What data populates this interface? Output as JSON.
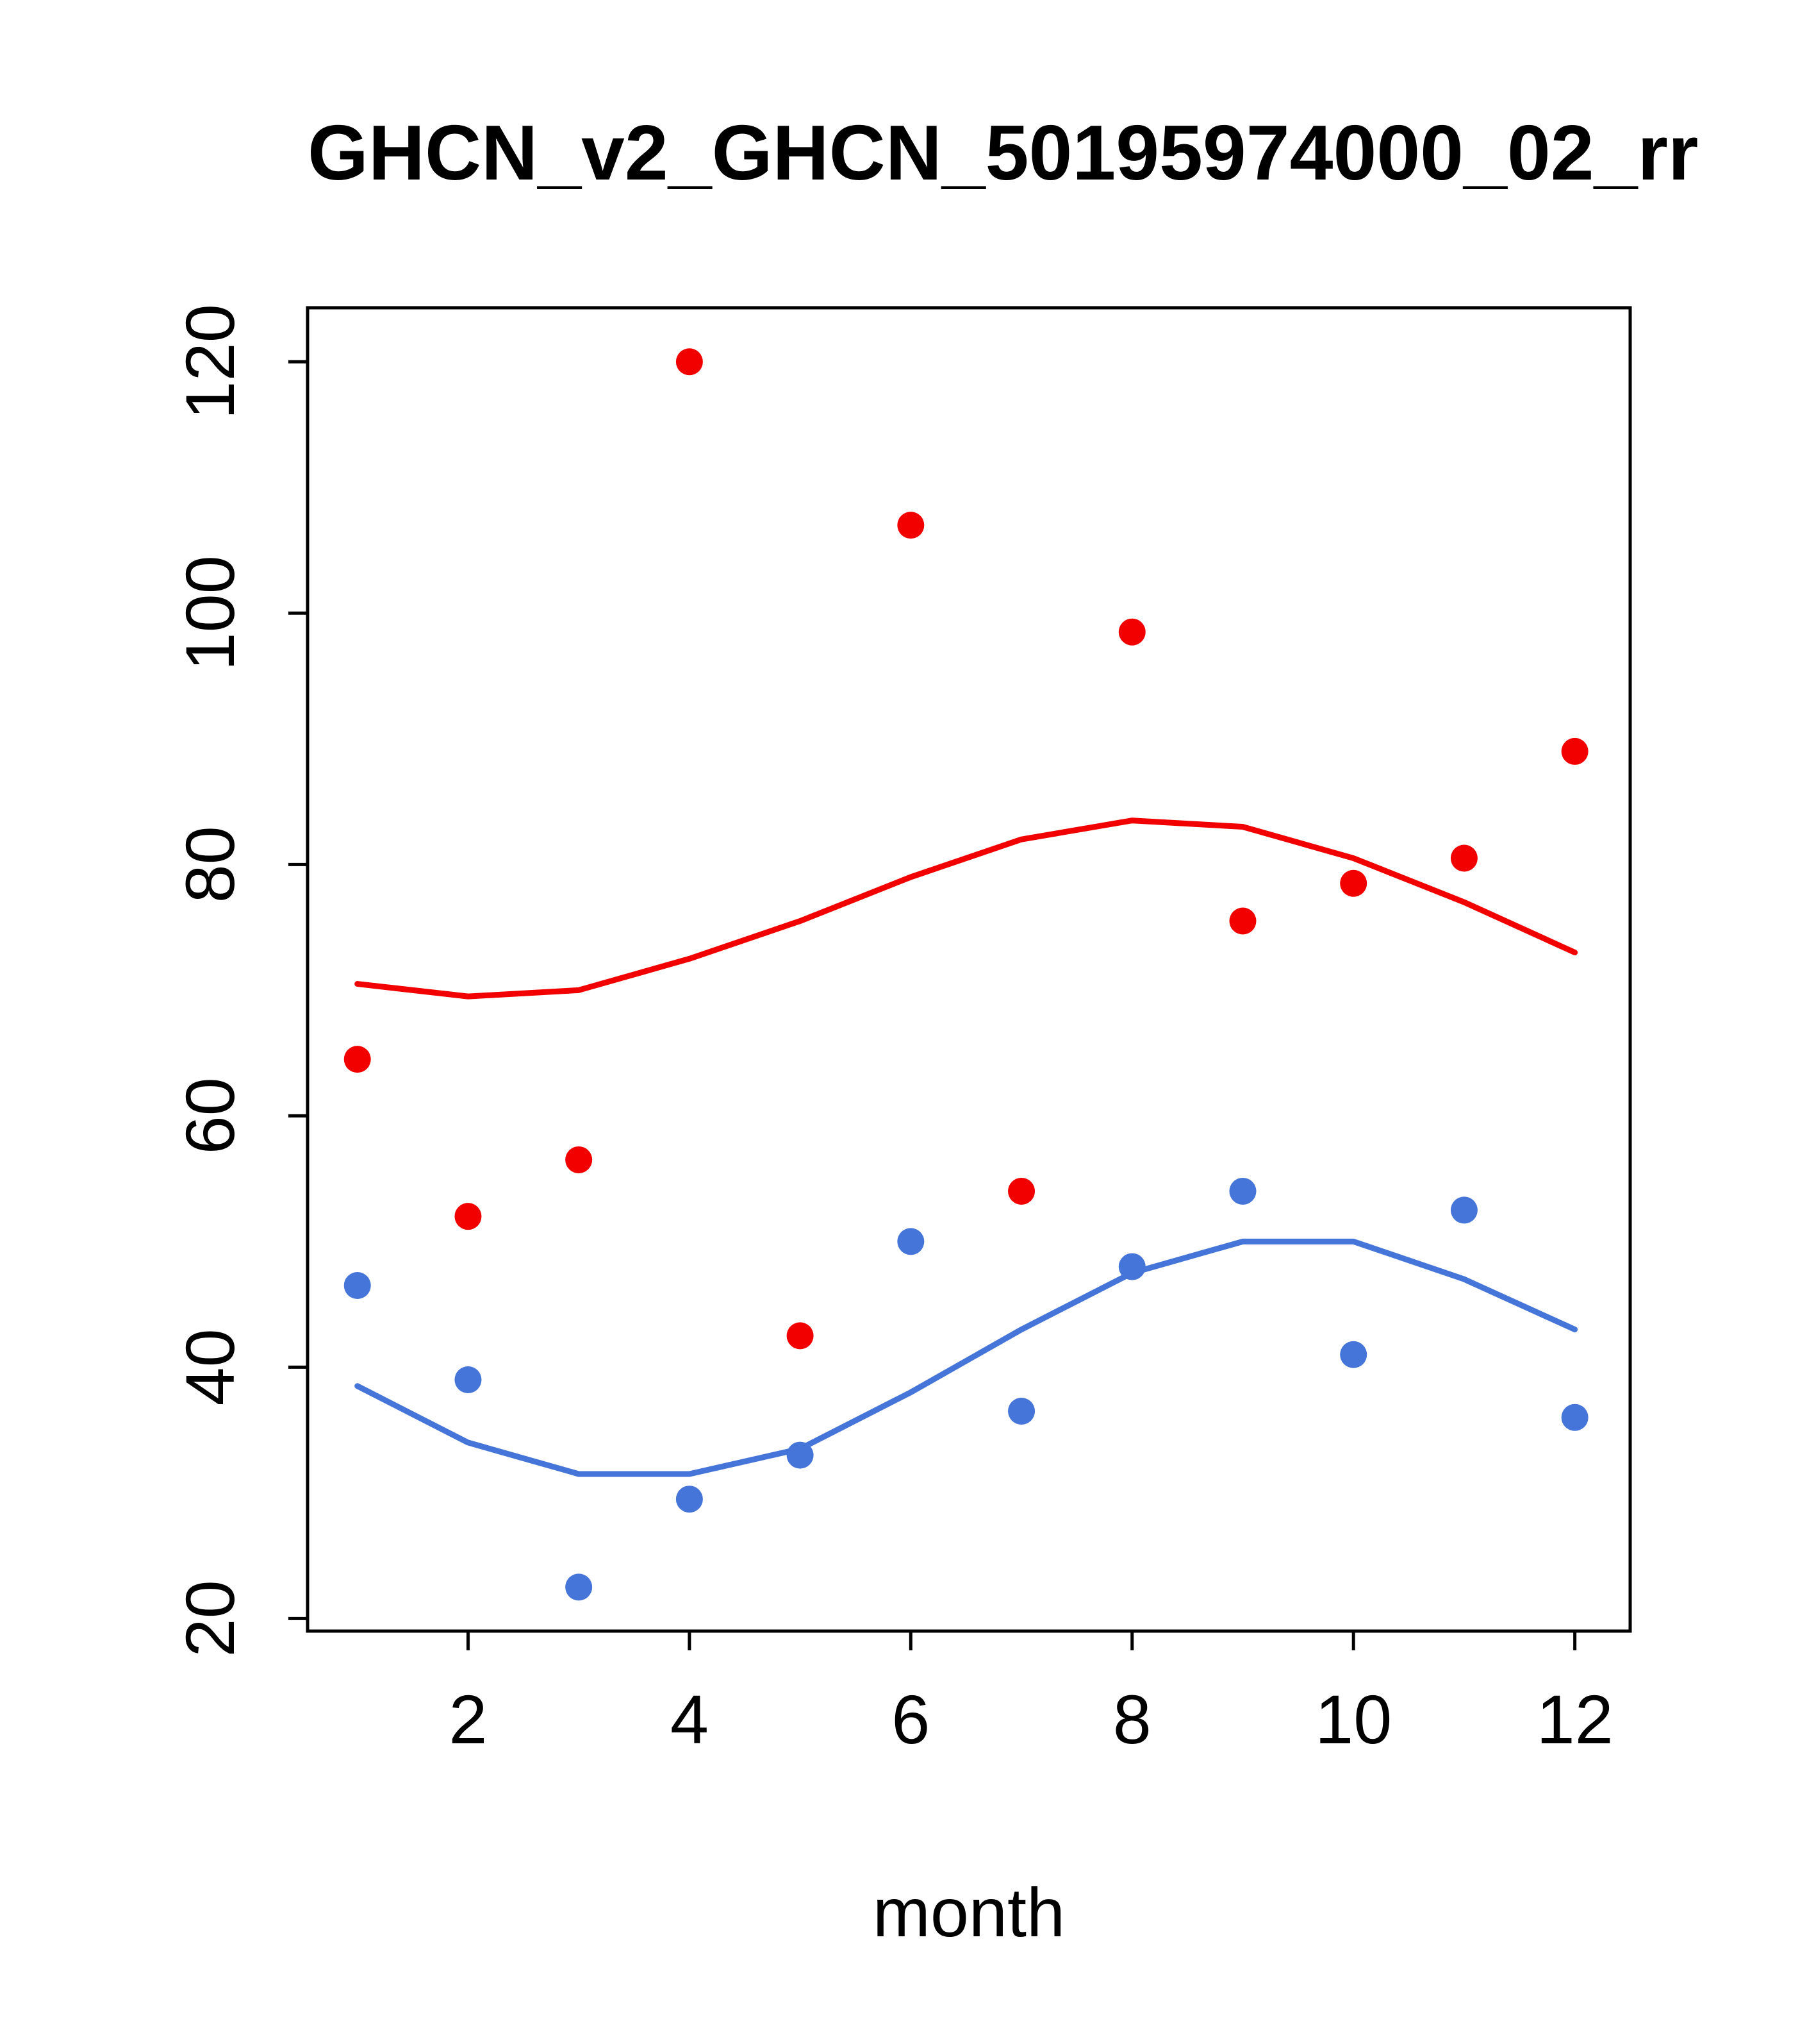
{
  "chart_data": {
    "type": "scatter",
    "title": "GHCN_v2_GHCN_50195974000_02_rr",
    "xlabel": "month",
    "ylabel": "",
    "xlim": [
      0.55,
      12.5
    ],
    "ylim": [
      19,
      124.3
    ],
    "x_ticks": [
      2,
      4,
      6,
      8,
      10,
      12
    ],
    "y_ticks": [
      20,
      40,
      60,
      80,
      100,
      120
    ],
    "grid": false,
    "legend_position": "none",
    "colors": {
      "red": "#f20000",
      "blue": "#4575d8",
      "axis": "#000000",
      "background": "#ffffff"
    },
    "x": [
      1,
      2,
      3,
      4,
      5,
      6,
      7,
      8,
      9,
      10,
      11,
      12
    ],
    "series": [
      {
        "name": "red-points",
        "draw": "points",
        "color": "#f20000",
        "values": [
          64.5,
          52,
          56.5,
          120,
          42.5,
          107,
          54,
          98.5,
          75.5,
          78.5,
          80.5,
          89
        ]
      },
      {
        "name": "red-smooth",
        "draw": "line",
        "color": "#f20000",
        "values": [
          70.5,
          69.5,
          70,
          72.5,
          75.5,
          79,
          82,
          83.5,
          83,
          80.5,
          77,
          73
        ]
      },
      {
        "name": "blue-points",
        "draw": "points",
        "color": "#4575d8",
        "values": [
          46.5,
          39,
          22.5,
          29.5,
          33,
          50,
          36.5,
          48,
          54,
          41,
          52.5,
          36
        ]
      },
      {
        "name": "blue-smooth",
        "draw": "line",
        "color": "#4575d8",
        "values": [
          38.5,
          34,
          31.5,
          31.5,
          33.5,
          38,
          43,
          47.5,
          50,
          50,
          47,
          43
        ]
      }
    ]
  }
}
